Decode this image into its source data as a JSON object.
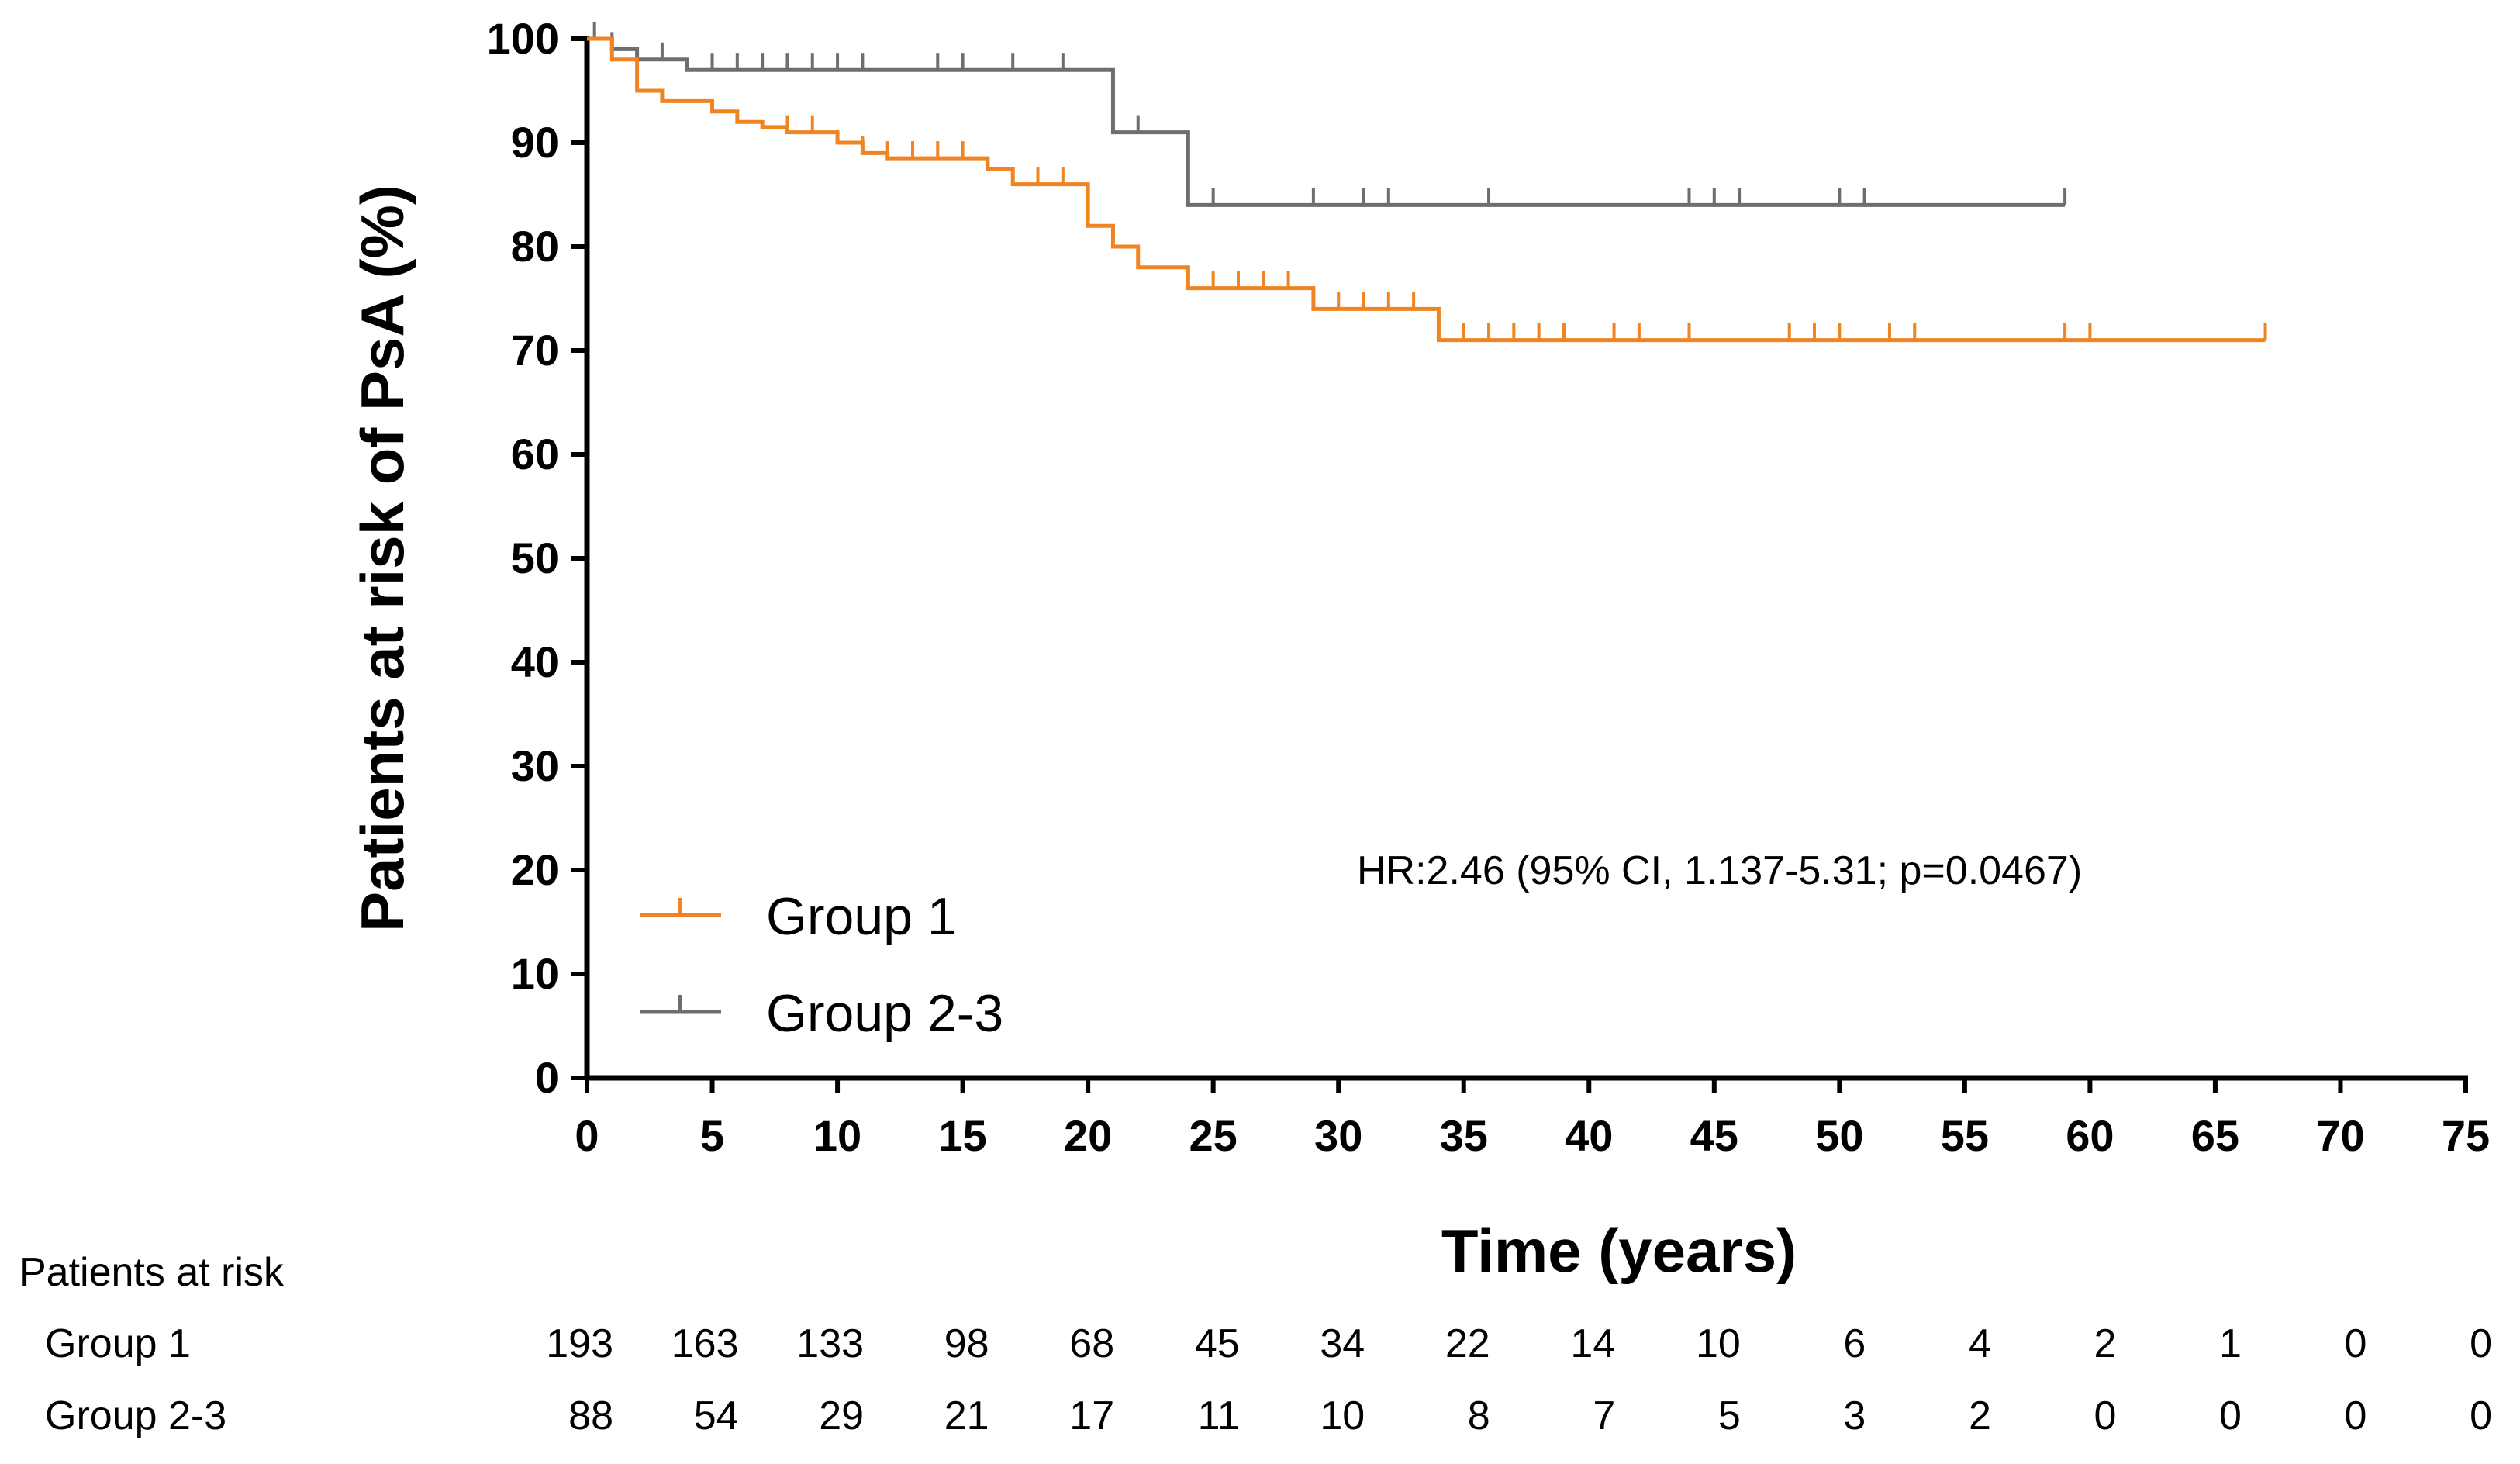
{
  "chart_data": {
    "type": "line",
    "subtype": "kaplan-meier",
    "title": "",
    "xlabel": "Time (years)",
    "ylabel": "Patients at risk of PsA  (%)",
    "xlim": [
      0,
      75
    ],
    "ylim": [
      0,
      100
    ],
    "xticks": [
      0,
      5,
      10,
      15,
      20,
      25,
      30,
      35,
      40,
      45,
      50,
      55,
      60,
      65,
      70,
      75
    ],
    "yticks": [
      0,
      10,
      20,
      30,
      40,
      50,
      60,
      70,
      80,
      90,
      100
    ],
    "series": [
      {
        "name": "Group 1",
        "color": "#F08322",
        "steps": [
          [
            0,
            100
          ],
          [
            1,
            98
          ],
          [
            2,
            95
          ],
          [
            3,
            94
          ],
          [
            5,
            93
          ],
          [
            6,
            92
          ],
          [
            7,
            91.5
          ],
          [
            8,
            91
          ],
          [
            10,
            90
          ],
          [
            11,
            89
          ],
          [
            12,
            88.5
          ],
          [
            16,
            87.5
          ],
          [
            17,
            86
          ],
          [
            20,
            82
          ],
          [
            21,
            80
          ],
          [
            22,
            78
          ],
          [
            24,
            76
          ],
          [
            29,
            74
          ],
          [
            34,
            71
          ],
          [
            67,
            71
          ]
        ],
        "censored": [
          [
            8,
            91
          ],
          [
            9,
            91
          ],
          [
            11,
            89
          ],
          [
            12,
            88.5
          ],
          [
            13,
            88.5
          ],
          [
            14,
            88.5
          ],
          [
            15,
            88.5
          ],
          [
            17,
            86
          ],
          [
            18,
            86
          ],
          [
            19,
            86
          ],
          [
            22,
            78
          ],
          [
            25,
            76
          ],
          [
            26,
            76
          ],
          [
            27,
            76
          ],
          [
            28,
            76
          ],
          [
            30,
            74
          ],
          [
            31,
            74
          ],
          [
            32,
            74
          ],
          [
            33,
            74
          ],
          [
            35,
            71
          ],
          [
            36,
            71
          ],
          [
            37,
            71
          ],
          [
            38,
            71
          ],
          [
            39,
            71
          ],
          [
            41,
            71
          ],
          [
            42,
            71
          ],
          [
            44,
            71
          ],
          [
            48,
            71
          ],
          [
            49,
            71
          ],
          [
            50,
            71
          ],
          [
            52,
            71
          ],
          [
            53,
            71
          ],
          [
            59,
            71
          ],
          [
            60,
            71
          ],
          [
            67,
            71
          ]
        ],
        "end": 67
      },
      {
        "name": "Group 2-3",
        "color": "#6E6E6E",
        "steps": [
          [
            0,
            100
          ],
          [
            1,
            99
          ],
          [
            2,
            98
          ],
          [
            4,
            97
          ],
          [
            21,
            91
          ],
          [
            24,
            84
          ],
          [
            59,
            84
          ]
        ],
        "censored": [
          [
            0.3,
            100
          ],
          [
            1,
            99
          ],
          [
            3,
            98
          ],
          [
            5,
            97
          ],
          [
            6,
            97
          ],
          [
            7,
            97
          ],
          [
            8,
            97
          ],
          [
            9,
            97
          ],
          [
            10,
            97
          ],
          [
            11,
            97
          ],
          [
            14,
            97
          ],
          [
            15,
            97
          ],
          [
            17,
            97
          ],
          [
            19,
            97
          ],
          [
            22,
            91
          ],
          [
            25,
            84
          ],
          [
            29,
            84
          ],
          [
            31,
            84
          ],
          [
            32,
            84
          ],
          [
            36,
            84
          ],
          [
            44,
            84
          ],
          [
            45,
            84
          ],
          [
            46,
            84
          ],
          [
            50,
            84
          ],
          [
            51,
            84
          ],
          [
            59,
            84
          ]
        ],
        "end": 59
      }
    ],
    "legend": {
      "position": "bottom-left",
      "entries": [
        {
          "label": "Group 1",
          "color": "#F08322"
        },
        {
          "label": "Group 2-3",
          "color": "#6E6E6E"
        }
      ]
    },
    "annotation": "HR:2.46 (95% CI, 1.137-5.31; p=0.0467)",
    "risk_table": {
      "title": "Patients at risk",
      "times": [
        0,
        5,
        10,
        15,
        20,
        25,
        30,
        35,
        40,
        45,
        50,
        55,
        60,
        65,
        70,
        75
      ],
      "rows": [
        {
          "label": "Group 1",
          "values": [
            "193",
            "163",
            "133",
            "98",
            "68",
            "45",
            "34",
            "22",
            "14",
            "10",
            "6",
            "4",
            "2",
            "1",
            "0",
            "0"
          ]
        },
        {
          "label": "Group 2-3",
          "values": [
            "88",
            "54",
            "29",
            "21",
            "17",
            "11",
            "10",
            "8",
            "7",
            "5",
            "3",
            "2",
            "0",
            "0",
            "0",
            "0"
          ]
        }
      ]
    }
  }
}
